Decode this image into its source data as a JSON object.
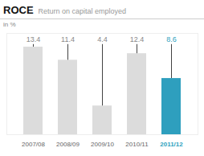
{
  "chart_data": {
    "type": "bar",
    "title": "ROCE",
    "subtitle": "Return on capital employed",
    "ylabel": "in %",
    "categories": [
      "2007/08",
      "2008/09",
      "2009/10",
      "2010/11",
      "2011/12"
    ],
    "values": [
      13.4,
      11.4,
      4.4,
      12.4,
      8.6
    ],
    "colors": [
      "#dcdcdc",
      "#dcdcdc",
      "#dcdcdc",
      "#dcdcdc",
      "#2e9fbe"
    ],
    "line_top": 13.8,
    "ylim": [
      0,
      15.5
    ],
    "data_labels": true,
    "tick_labels": "x",
    "grid": false
  }
}
